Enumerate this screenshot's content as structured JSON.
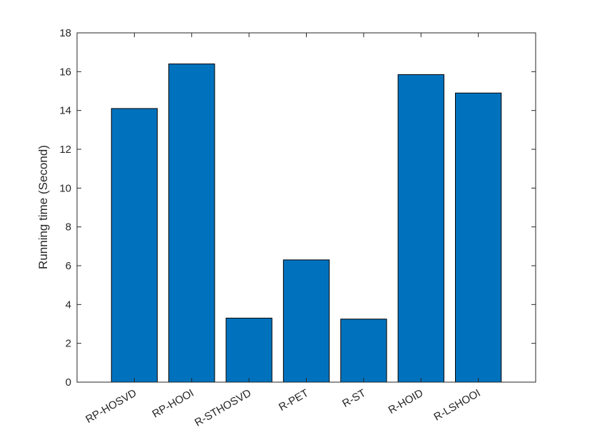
{
  "chart_data": {
    "type": "bar",
    "title": "",
    "xlabel": "",
    "ylabel": "Running time (Second)",
    "categories": [
      "RP-HOSVD",
      "RP-HOOI",
      "R-STHOSVD",
      "R-PET",
      "R-ST",
      "R-HOID",
      "R-LSHOOI"
    ],
    "values": [
      14.1,
      16.4,
      3.3,
      6.3,
      3.25,
      15.85,
      14.9
    ],
    "ylim": [
      0,
      18
    ],
    "yticks": [
      0,
      2,
      4,
      6,
      8,
      10,
      12,
      14,
      16,
      18
    ],
    "ytick_labels": [
      "0",
      "2",
      "4",
      "6",
      "8",
      "10",
      "12",
      "14",
      "16",
      "18"
    ],
    "grid": false,
    "bar_color": "#0072BD",
    "bar_edge_color": "#000000",
    "axis_color": "#262626"
  }
}
